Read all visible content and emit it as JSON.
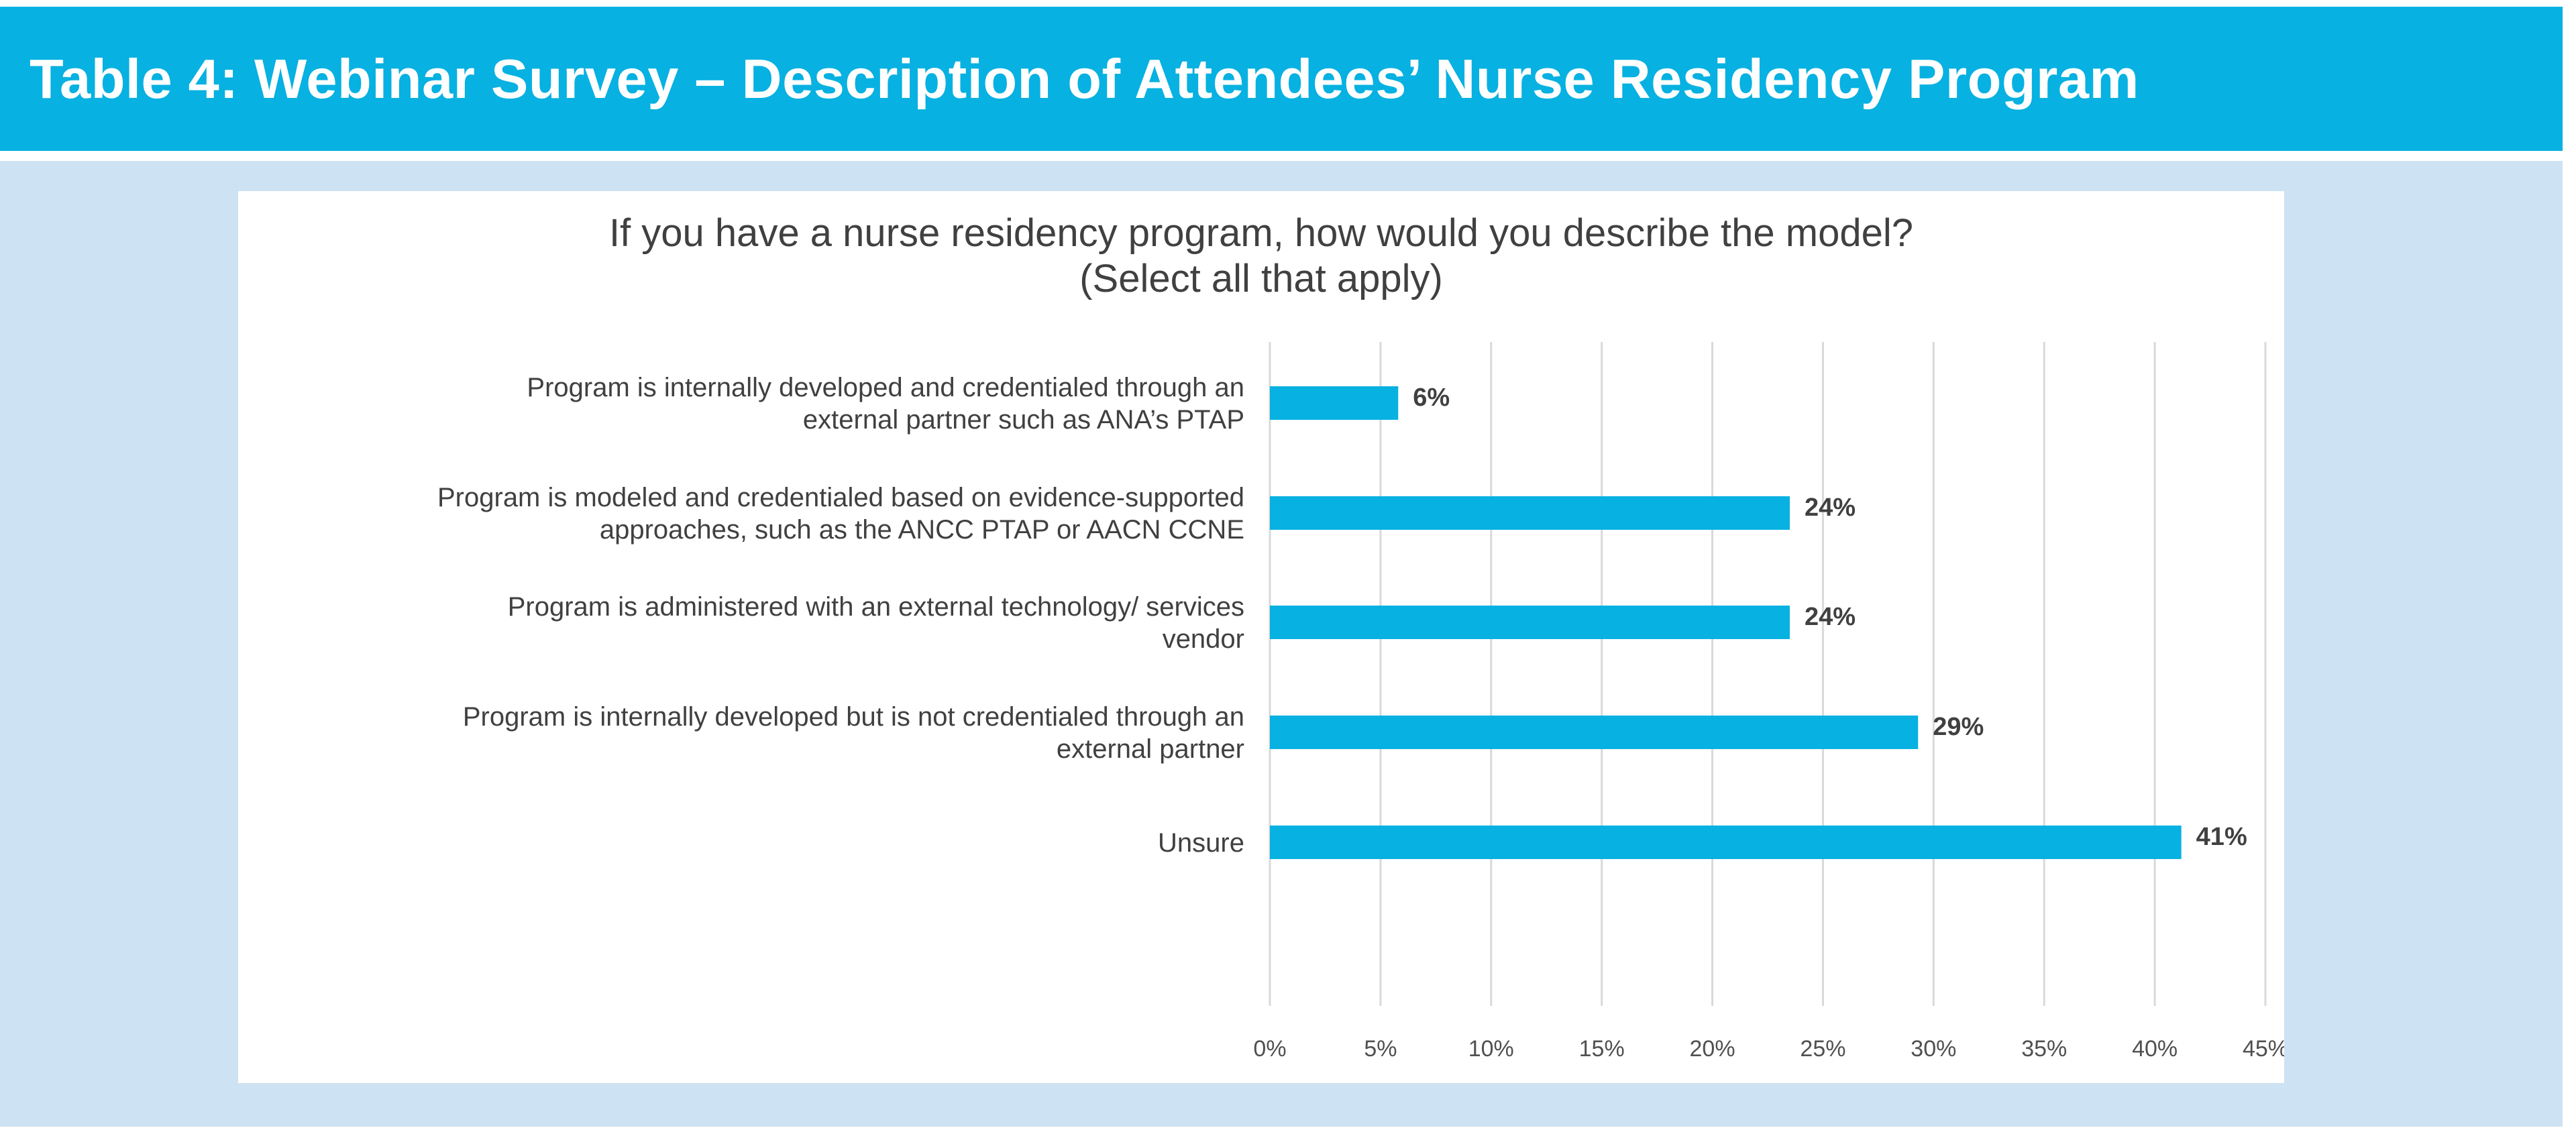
{
  "header": {
    "title": "Table 4: Webinar Survey – Description of Attendees’ Nurse Residency Program"
  },
  "colors": {
    "header_bg": "#07b1e1",
    "panel_bg": "#cde2f2",
    "bar": "#07b1e1",
    "grid": "#d9d9d9"
  },
  "chart_data": {
    "type": "bar",
    "orientation": "horizontal",
    "title_lines": [
      "If you have a nurse residency program, how would you describe the model?",
      "(Select all that apply)"
    ],
    "categories": [
      [
        "Program is internally developed and credentialed through an",
        "external partner such as ANA’s PTAP"
      ],
      [
        "Program is modeled and credentialed based on evidence-supported",
        "approaches, such as the ANCC PTAP or AACN CCNE"
      ],
      [
        "Program is administered with an external technology/ services",
        "vendor"
      ],
      [
        "Program is internally developed but is not credentialed through an",
        "external partner"
      ],
      [
        "Unsure"
      ]
    ],
    "values": [
      5.8,
      23.5,
      23.5,
      29.3,
      41.2
    ],
    "data_labels": [
      "6%",
      "24%",
      "24%",
      "29%",
      "41%"
    ],
    "xlim": [
      0,
      45
    ],
    "xticks": [
      0,
      5,
      10,
      15,
      20,
      25,
      30,
      35,
      40,
      45
    ],
    "xtick_labels": [
      "0%",
      "5%",
      "10%",
      "15%",
      "20%",
      "25%",
      "30%",
      "35%",
      "40%",
      "45%"
    ],
    "grid": true,
    "legend": "none"
  }
}
